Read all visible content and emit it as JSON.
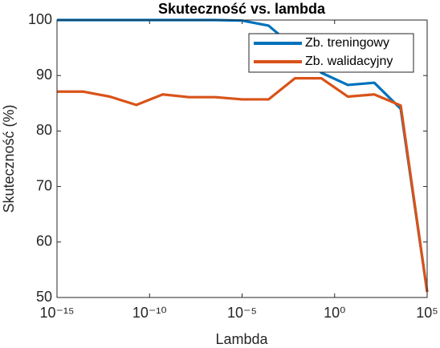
{
  "chart_data": {
    "type": "line",
    "title": "Skuteczność vs. lambda",
    "xlabel": "Lambda",
    "ylabel": "Skuteczność (%)",
    "xscale": "log",
    "x": [
      1e-15,
      2.683e-14,
      7.197e-13,
      1.931e-11,
      5.179e-10,
      1.389e-08,
      3.728e-07,
      1e-05,
      0.0002683,
      0.007197,
      0.1931,
      5.179,
      138.9,
      3728,
      100000
    ],
    "series": [
      {
        "name": "Zb. treningowy",
        "color": "#0072bd",
        "values": [
          100,
          100,
          100,
          100,
          100,
          100,
          100,
          99.9,
          99,
          95,
          90.5,
          88.3,
          88.7,
          84,
          51
        ]
      },
      {
        "name": "Zb. walidacyjny",
        "color": "#d95319",
        "values": [
          87.1,
          87.1,
          86.2,
          84.7,
          86.6,
          86.1,
          86.1,
          85.7,
          85.7,
          89.5,
          89.5,
          86.2,
          86.6,
          84.6,
          51
        ]
      }
    ],
    "xlim": [
      1e-15,
      100000
    ],
    "xticks": [
      {
        "value": 1e-15,
        "label": "10⁻¹⁵"
      },
      {
        "value": 1e-10,
        "label": "10⁻¹⁰"
      },
      {
        "value": 1e-05,
        "label": "10⁻⁵"
      },
      {
        "value": 1,
        "label": "10⁰"
      },
      {
        "value": 100000,
        "label": "10⁵"
      }
    ],
    "ylim": [
      50,
      100
    ],
    "yticks": [
      50,
      60,
      70,
      80,
      90,
      100
    ],
    "grid": false,
    "legend": "upper right"
  }
}
